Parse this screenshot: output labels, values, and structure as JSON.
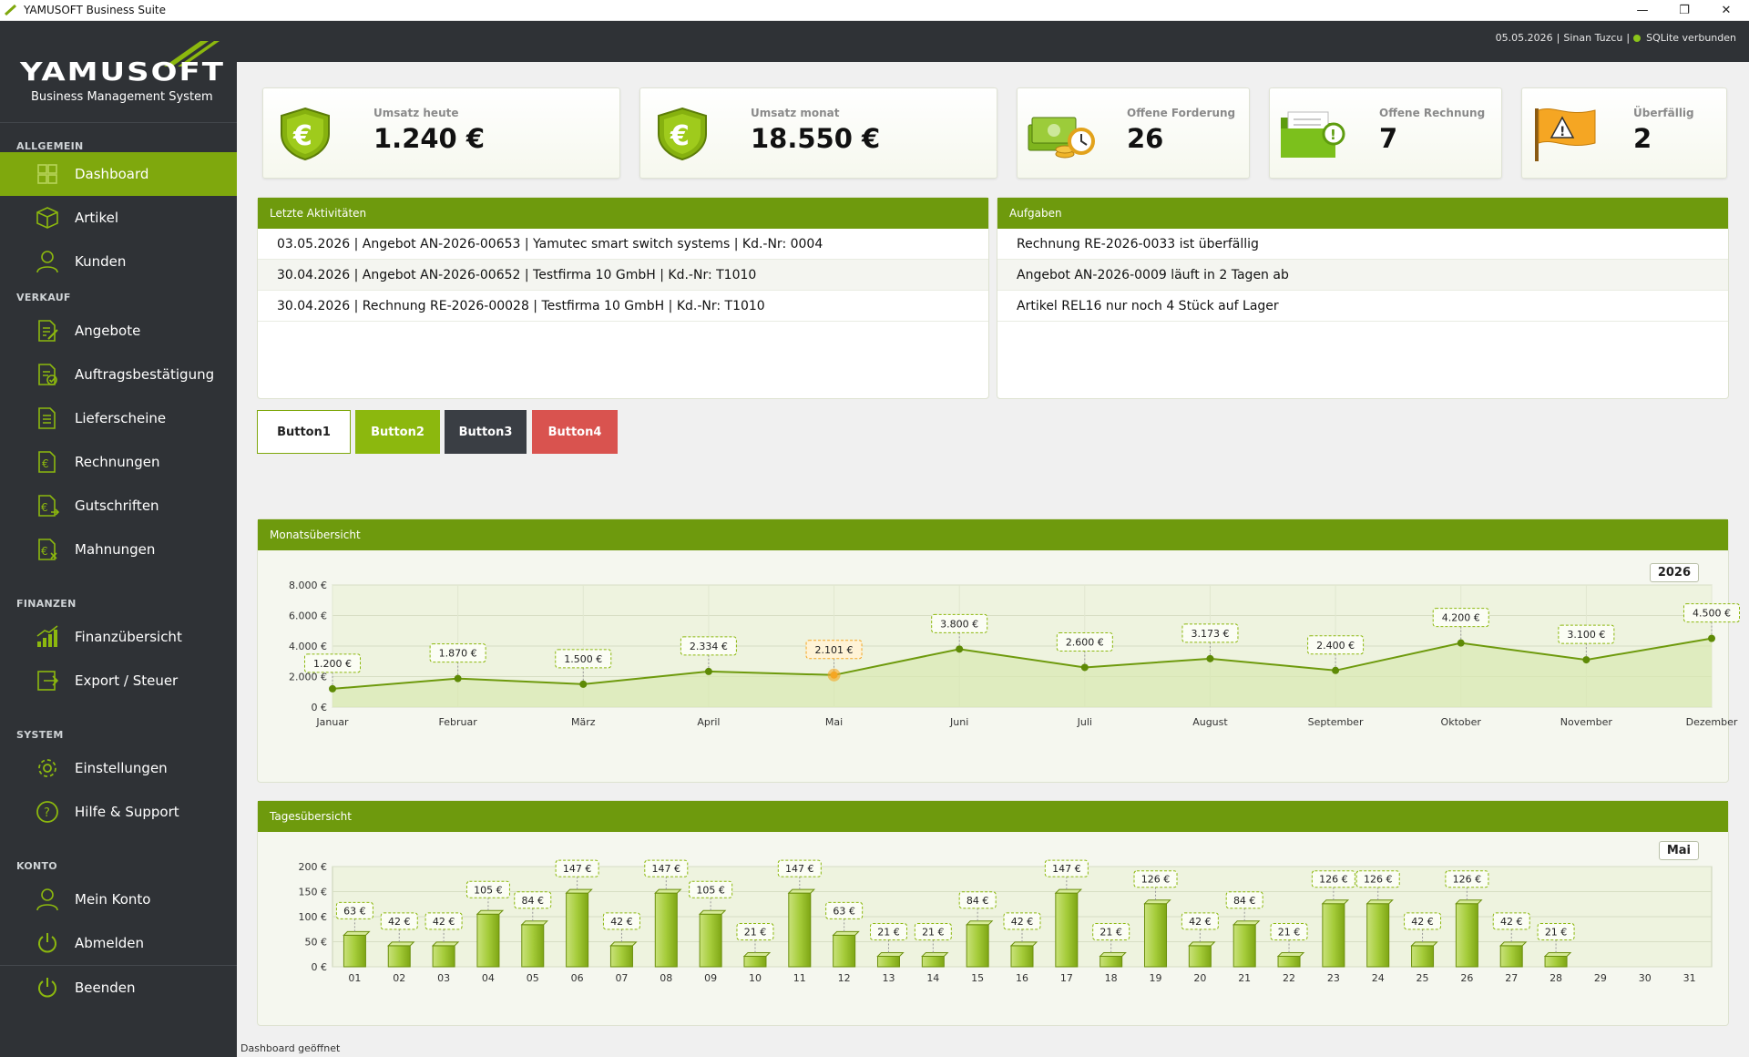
{
  "window": {
    "title": "YAMUSOFT Business Suite",
    "minimize": "—",
    "restore": "❐",
    "close": "✕"
  },
  "brand": {
    "logo": "YAMUSOFT",
    "subtitle": "Business Management System"
  },
  "topbar": {
    "date": "05.05.2026",
    "user": "Sinan Tuzcu",
    "db_status": "SQLite verbunden"
  },
  "sidebar": {
    "sections": [
      {
        "title": "ALLGEMEIN",
        "items": [
          {
            "label": "Dashboard",
            "icon": "dashboard-icon",
            "active": true
          },
          {
            "label": "Artikel",
            "icon": "box-icon"
          },
          {
            "label": "Kunden",
            "icon": "user-icon"
          }
        ]
      },
      {
        "title": "VERKAUF",
        "items": [
          {
            "label": "Angebote",
            "icon": "document-edit-icon"
          },
          {
            "label": "Auftragsbestätigung",
            "icon": "document-check-icon"
          },
          {
            "label": "Lieferscheine",
            "icon": "document-icon"
          },
          {
            "label": "Rechnungen",
            "icon": "euro-document-icon"
          },
          {
            "label": "Gutschriften",
            "icon": "credit-note-icon"
          },
          {
            "label": "Mahnungen",
            "icon": "reminder-icon"
          }
        ]
      },
      {
        "title": "FINANZEN",
        "items": [
          {
            "label": "Finanzübersicht",
            "icon": "bar-chart-icon"
          },
          {
            "label": "Export / Steuer",
            "icon": "export-icon"
          }
        ]
      },
      {
        "title": "SYSTEM",
        "items": [
          {
            "label": "Einstellungen",
            "icon": "gear-icon"
          },
          {
            "label": "Hilfe & Support",
            "icon": "help-icon"
          }
        ]
      },
      {
        "title": "KONTO",
        "items": [
          {
            "label": "Mein Konto",
            "icon": "user-icon"
          },
          {
            "label": "Abmelden",
            "icon": "power-icon"
          }
        ]
      }
    ],
    "footer_item": {
      "label": "Beenden",
      "icon": "power-icon"
    }
  },
  "kpis": [
    {
      "label": "Umsatz heute",
      "value": "1.240 €",
      "icon": "euro-shield-icon"
    },
    {
      "label": "Umsatz monat",
      "value": "18.550 €",
      "icon": "euro-shield-icon"
    },
    {
      "label": "Offene Forderung",
      "value": "26",
      "icon": "money-clock-icon"
    },
    {
      "label": "Offene Rechnung",
      "value": "7",
      "icon": "folder-alert-icon"
    },
    {
      "label": "Überfällig",
      "value": "2",
      "icon": "warning-flag-icon"
    }
  ],
  "activities": {
    "title": "Letzte Aktivitäten",
    "rows": [
      "03.05.2026 | Angebot AN-2026-00653 | Yamutec smart switch systems | Kd.-Nr: 0004",
      "30.04.2026 | Angebot AN-2026-00652 | Testfirma 10 GmbH | Kd.-Nr: T1010",
      "30.04.2026 | Rechnung RE-2026-00028 | Testfirma 10 GmbH | Kd.-Nr: T1010"
    ]
  },
  "tasks": {
    "title": "Aufgaben",
    "rows": [
      "Rechnung RE-2026-0033 ist überfällig",
      "Angebot AN-2026-0009 läuft in 2 Tagen ab",
      "Artikel REL16 nur noch 4 Stück auf Lager"
    ]
  },
  "buttons": [
    {
      "label": "Button1",
      "bg": "#ffffff",
      "fg": "#222222",
      "border": "#7fa80d"
    },
    {
      "label": "Button2",
      "bg": "#8cb80e",
      "fg": "#ffffff",
      "border": "#8cb80e"
    },
    {
      "label": "Button3",
      "bg": "#3a3e44",
      "fg": "#ffffff",
      "border": "#3a3e44"
    },
    {
      "label": "Button4",
      "bg": "#d9534f",
      "fg": "#ffffff",
      "border": "#d9534f"
    }
  ],
  "colors": {
    "accent": "#7fa80d",
    "header_green": "#6e9a0d",
    "sidebar": "#2f3236",
    "highlight": "#f5a623"
  },
  "chart_data": [
    {
      "type": "line",
      "title": "Monatsübersicht",
      "badge": "2026",
      "categories": [
        "Januar",
        "Februar",
        "März",
        "April",
        "Mai",
        "Juni",
        "Juli",
        "August",
        "September",
        "Oktober",
        "November",
        "Dezember"
      ],
      "values": [
        1200,
        1870,
        1500,
        2334,
        2101,
        3800,
        2600,
        3173,
        2400,
        4200,
        3100,
        4500
      ],
      "labels": [
        "1.200 €",
        "1.870 €",
        "1.500 €",
        "2.334 €",
        "2.101 €",
        "3.800 €",
        "2.600 €",
        "3.173 €",
        "2.400 €",
        "4.200 €",
        "3.100 €",
        "4.500 €"
      ],
      "highlight_index": 4,
      "ylim": [
        0,
        8000
      ],
      "yticks": [
        "0 €",
        "2.000 €",
        "4.000 €",
        "6.000 €",
        "8.000 €"
      ],
      "grid": true
    },
    {
      "type": "bar",
      "title": "Tagesübersicht",
      "badge": "Mai",
      "categories": [
        "01",
        "02",
        "03",
        "04",
        "05",
        "06",
        "07",
        "08",
        "09",
        "10",
        "11",
        "12",
        "13",
        "14",
        "15",
        "16",
        "17",
        "18",
        "19",
        "20",
        "21",
        "22",
        "23",
        "24",
        "25",
        "26",
        "27",
        "28",
        "29",
        "30",
        "31"
      ],
      "values": [
        63,
        42,
        42,
        105,
        84,
        147,
        42,
        147,
        105,
        21,
        147,
        63,
        21,
        21,
        84,
        42,
        147,
        21,
        126,
        42,
        84,
        21,
        126,
        126,
        42,
        126,
        42,
        21,
        null,
        null,
        null
      ],
      "labels": [
        "63 €",
        "42 €",
        "42 €",
        "105 €",
        "84 €",
        "147 €",
        "42 €",
        "147 €",
        "105 €",
        "21 €",
        "147 €",
        "63 €",
        "21 €",
        "21 €",
        "84 €",
        "42 €",
        "147 €",
        "21 €",
        "126 €",
        "42 €",
        "84 €",
        "21 €",
        "126 €",
        "126 €",
        "42 €",
        "126 €",
        "42 €",
        "21 €",
        null,
        null,
        null
      ],
      "ylim": [
        0,
        200
      ],
      "yticks": [
        "0 €",
        "50 €",
        "100 €",
        "150 €",
        "200 €"
      ],
      "grid": true
    }
  ],
  "status": "Dashboard geöffnet"
}
